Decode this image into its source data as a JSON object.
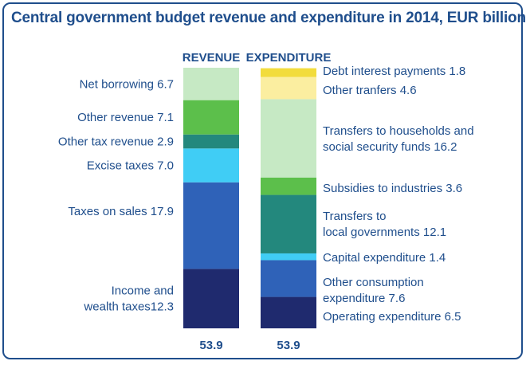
{
  "chart_data": {
    "type": "stacked-bar",
    "title": "Central government budget revenue and expenditure in 2014, EUR billion",
    "revenue": {
      "header": "REVENUE",
      "total": "53.9",
      "segments": [
        {
          "label": "Income and wealth taxes12.3",
          "value": 12.3,
          "color": "#1f2a6e"
        },
        {
          "label": "Taxes on sales 17.9",
          "value": 17.9,
          "color": "#2f62b8"
        },
        {
          "label": "Excise taxes 7.0",
          "value": 7.0,
          "color": "#40cdf5"
        },
        {
          "label": "Other tax revenue 2.9",
          "value": 2.9,
          "color": "#23887d"
        },
        {
          "label": "Other revenue 7.1",
          "value": 7.1,
          "color": "#5cbf4b"
        },
        {
          "label": "Net borrowing 6.7",
          "value": 6.7,
          "color": "#c6e9c4"
        }
      ]
    },
    "expenditure": {
      "header": "EXPENDITURE",
      "total": "53.9",
      "segments": [
        {
          "label": "Operating expenditure 6.5",
          "value": 6.5,
          "color": "#1f2a6e"
        },
        {
          "label": "Other consumption expenditure 7.6",
          "value": 7.6,
          "color": "#2f62b8"
        },
        {
          "label": "Capital expenditure 1.4",
          "value": 1.4,
          "color": "#40cdf5"
        },
        {
          "label": "Transfers to local governments 12.1",
          "value": 12.1,
          "color": "#23887d"
        },
        {
          "label": "Subsidies to industries 3.6",
          "value": 3.6,
          "color": "#5cbf4b"
        },
        {
          "label": "Transfers to households and social security funds 16.2",
          "value": 16.2,
          "color": "#c6e9c4"
        },
        {
          "label": "Other tranfers 4.6",
          "value": 4.6,
          "color": "#fbeea0"
        },
        {
          "label": "Debt interest payments 1.8",
          "value": 1.8,
          "color": "#f2dc3c"
        }
      ]
    },
    "text_color": "#1f4e8c"
  }
}
